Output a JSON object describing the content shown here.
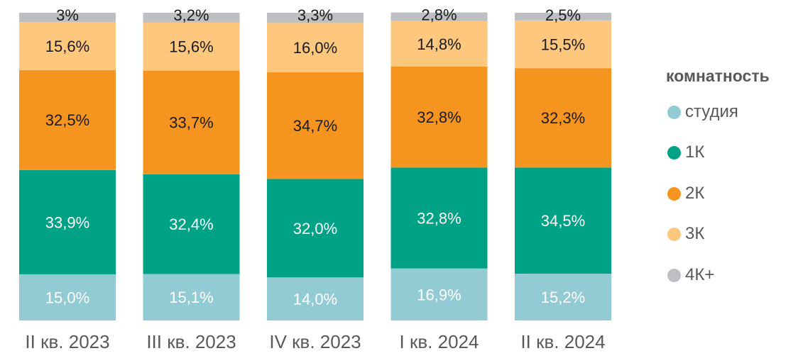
{
  "chart_data": {
    "type": "bar",
    "stacked": true,
    "title": "",
    "xlabel": "",
    "ylabel": "",
    "ylim": [
      0,
      100
    ],
    "grid": false,
    "legend_position": "right",
    "legend_title": "комнатность",
    "categories": [
      "II кв. 2023",
      "III кв. 2023",
      "IV кв. 2023",
      "I кв. 2024",
      "II кв. 2024"
    ],
    "series": [
      {
        "name": "студия",
        "color": "#92CBD3",
        "values": [
          15.0,
          15.1,
          14.0,
          16.9,
          15.2
        ],
        "labels": [
          "15,0%",
          "15,1%",
          "14,0%",
          "16,9%",
          "15,2%"
        ]
      },
      {
        "name": "1К",
        "color": "#00A286",
        "values": [
          33.9,
          32.4,
          32.0,
          32.8,
          34.5
        ],
        "labels": [
          "33,9%",
          "32,4%",
          "32,0%",
          "32,8%",
          "34,5%"
        ]
      },
      {
        "name": "2К",
        "color": "#F59520",
        "values": [
          32.5,
          33.7,
          34.7,
          32.8,
          32.3
        ],
        "labels": [
          "32,5%",
          "33,7%",
          "34,7%",
          "32,8%",
          "32,3%"
        ]
      },
      {
        "name": "3К",
        "color": "#FDC77E",
        "values": [
          15.6,
          15.6,
          16.0,
          14.8,
          15.5
        ],
        "labels": [
          "15,6%",
          "15,6%",
          "16,0%",
          "14,8%",
          "15,5%"
        ]
      },
      {
        "name": "4К+",
        "color": "#BDBFC2",
        "values": [
          3.0,
          3.2,
          3.3,
          2.8,
          2.5
        ],
        "labels": [
          "3%",
          "3,2%",
          "3,3%",
          "2,8%",
          "2,5%"
        ]
      }
    ],
    "label_colors": {
      "студия": "#ffffff",
      "1К": "#ffffff",
      "2К": "#1a1a1a",
      "3К": "#1a1a1a",
      "4К+": "#1a1a1a"
    },
    "tick_label_color": "#595959"
  }
}
